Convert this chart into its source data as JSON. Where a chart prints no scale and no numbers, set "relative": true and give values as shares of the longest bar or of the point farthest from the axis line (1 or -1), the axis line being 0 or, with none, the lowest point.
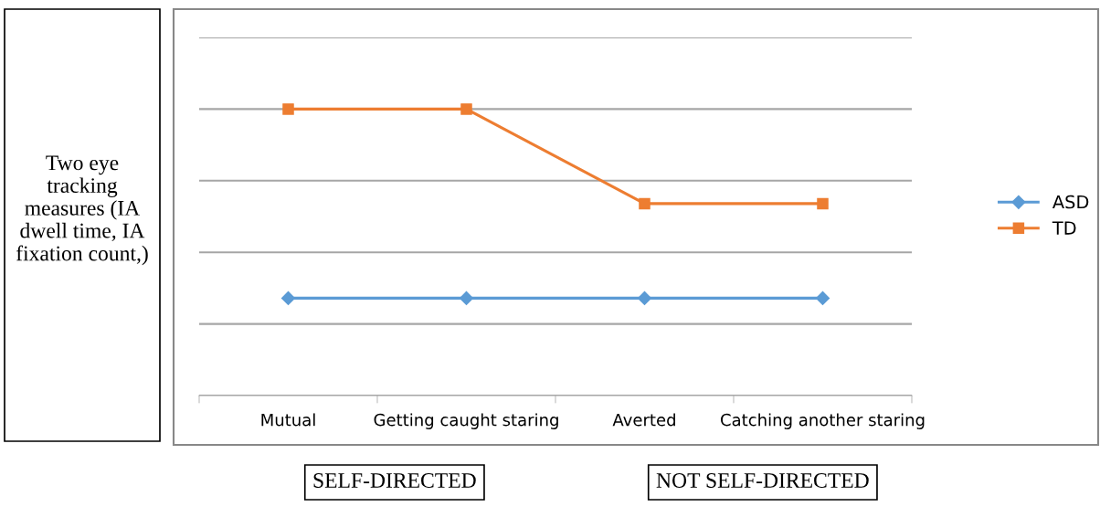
{
  "chart_data": {
    "type": "line",
    "relative": true,
    "ylabel": "Two eye tracking measures (IA dwell time, IA fixation count,)",
    "categories": [
      "Mutual",
      "Getting caught staring",
      "Averted",
      "Catching another staring"
    ],
    "series": [
      {
        "name": "ASD",
        "color": "#5b9bd5",
        "marker": "diamond",
        "values": [
          0.34,
          0.34,
          0.34,
          0.34
        ]
      },
      {
        "name": "TD",
        "color": "#ed7d31",
        "marker": "square",
        "values": [
          1,
          1,
          0.67,
          0.67
        ]
      }
    ],
    "grid": "y",
    "legend": "right",
    "annotations": [
      "SELF-DIRECTED",
      "NOT SELF-DIRECTED"
    ]
  }
}
